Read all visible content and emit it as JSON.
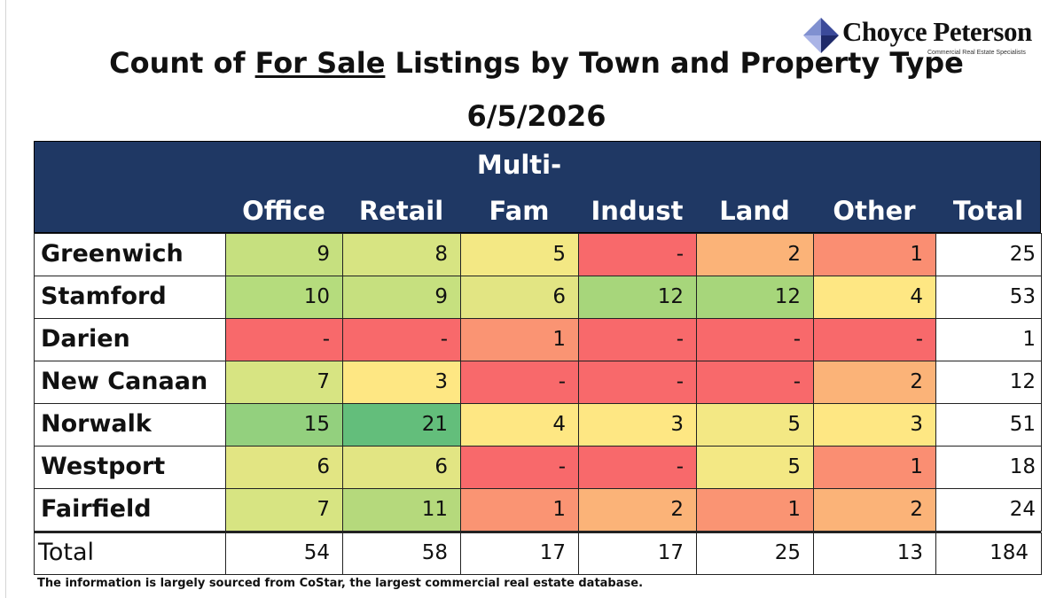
{
  "brand": {
    "name": "Choyce Peterson",
    "tagline": "Commercial Real Estate Specialists",
    "logo_colors": [
      "#3b4a9a",
      "#8090d0",
      "#1f2a6a",
      "#aab4e6"
    ]
  },
  "title": {
    "pre": "Count of ",
    "underlined": "For Sale",
    "post": " Listings by Town and Property Type"
  },
  "date": "6/5/2026",
  "source_note": "The information is largely sourced from CoStar, the largest commercial real estate database.",
  "colors": {
    "header_bg": "#1f3864",
    "header_text": "#ffffff",
    "heat_low": "#f8696b",
    "heat_mid": "#ffeb84",
    "heat_high": "#63be7b"
  },
  "chart_data": {
    "type": "table",
    "heatmap": true,
    "columns": [
      {
        "key": "office",
        "line1": "",
        "line2": "Office"
      },
      {
        "key": "retail",
        "line1": "",
        "line2": "Retail"
      },
      {
        "key": "multifam",
        "line1": "Multi-",
        "line2": "Fam"
      },
      {
        "key": "indust",
        "line1": "",
        "line2": "Indust"
      },
      {
        "key": "land",
        "line1": "",
        "line2": "Land"
      },
      {
        "key": "other",
        "line1": "",
        "line2": "Other"
      },
      {
        "key": "total",
        "line1": "",
        "line2": "Total"
      }
    ],
    "rows": [
      {
        "town": "Greenwich",
        "values": [
          "9",
          "8",
          "5",
          "-",
          "2",
          "1",
          "25"
        ]
      },
      {
        "town": "Stamford",
        "values": [
          "10",
          "9",
          "6",
          "12",
          "12",
          "4",
          "53"
        ]
      },
      {
        "town": "Darien",
        "values": [
          "-",
          "-",
          "1",
          "-",
          "-",
          "-",
          "1"
        ]
      },
      {
        "town": "New Canaan",
        "values": [
          "7",
          "3",
          "-",
          "-",
          "-",
          "2",
          "12"
        ]
      },
      {
        "town": "Norwalk",
        "values": [
          "15",
          "21",
          "4",
          "3",
          "5",
          "3",
          "51"
        ]
      },
      {
        "town": "Westport",
        "values": [
          "6",
          "6",
          "-",
          "-",
          "5",
          "1",
          "18"
        ]
      },
      {
        "town": "Fairfield",
        "values": [
          "7",
          "11",
          "1",
          "2",
          "1",
          "2",
          "24"
        ]
      }
    ],
    "totals": {
      "label": "Total",
      "values": [
        "54",
        "58",
        "17",
        "17",
        "25",
        "13",
        "184"
      ]
    },
    "cell_colors": [
      [
        "#c6e07f",
        "#d7e482",
        "#f3e884",
        "#f8696b",
        "#fbb378",
        "#fa8e72"
      ],
      [
        "#b5dc7d",
        "#c6e07f",
        "#e2e583",
        "#a7d67b",
        "#a7d67b",
        "#fee783"
      ],
      [
        "#f8696b",
        "#f8696b",
        "#fa9473",
        "#f8696b",
        "#f8696b",
        "#f8696b"
      ],
      [
        "#d7e482",
        "#fee783",
        "#f8696b",
        "#f8696b",
        "#f8696b",
        "#fbb378"
      ],
      [
        "#93d07e",
        "#63be7b",
        "#fee783",
        "#fee783",
        "#f3e884",
        "#fee783"
      ],
      [
        "#e2e583",
        "#e2e583",
        "#f8696b",
        "#f8696b",
        "#f3e884",
        "#fa8e72"
      ],
      [
        "#d7e482",
        "#b5d97c",
        "#fa9473",
        "#fbb378",
        "#fa9473",
        "#fbb378"
      ]
    ]
  }
}
